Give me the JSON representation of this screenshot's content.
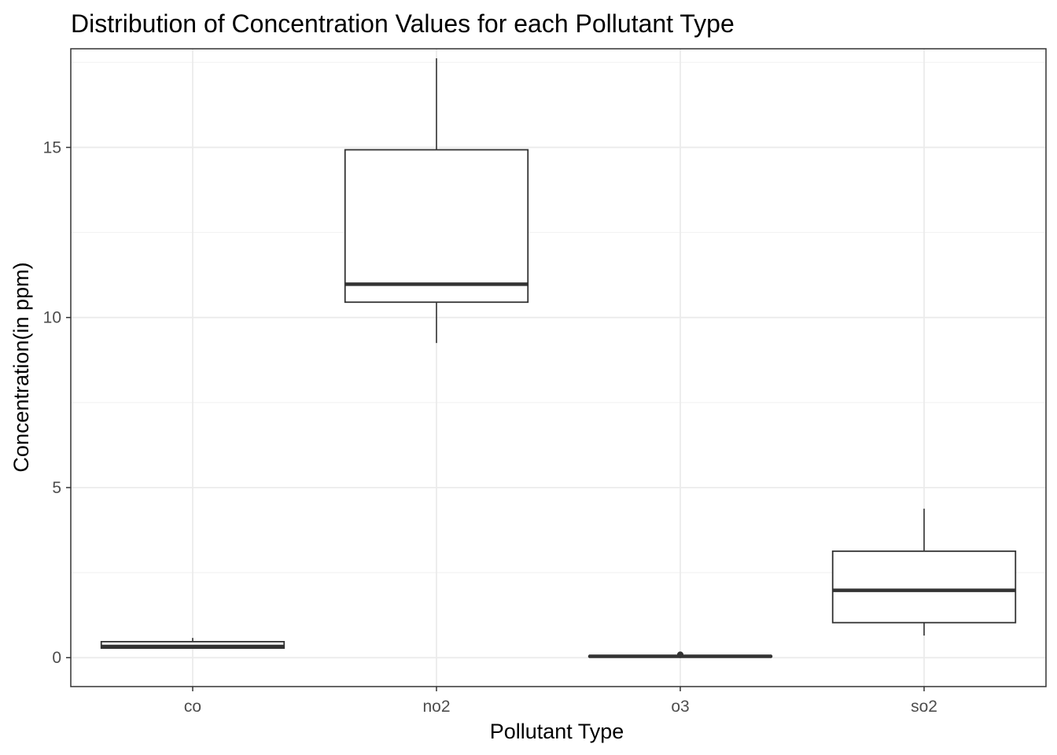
{
  "chart_data": {
    "type": "boxplot",
    "title": "Distribution of Concentration Values for each Pollutant Type",
    "xlabel": "Pollutant Type",
    "ylabel": "Concentration(in ppm)",
    "categories": [
      "co",
      "no2",
      "o3",
      "so2"
    ],
    "ylim": [
      -0.85,
      17.9
    ],
    "yticks": [
      0,
      5,
      10,
      15
    ],
    "grid": true,
    "legend": "none",
    "boxes": [
      {
        "category": "co",
        "whisker_low": 0.28,
        "q1": 0.28,
        "median": 0.33,
        "q3": 0.47,
        "whisker_high": 0.58,
        "outliers": []
      },
      {
        "category": "no2",
        "whisker_low": 9.25,
        "q1": 10.45,
        "median": 10.98,
        "q3": 14.93,
        "whisker_high": 17.62,
        "outliers": []
      },
      {
        "category": "o3",
        "whisker_low": 0.02,
        "q1": 0.03,
        "median": 0.04,
        "q3": 0.05,
        "whisker_high": 0.06,
        "outliers": [
          0.08,
          0.09
        ]
      },
      {
        "category": "so2",
        "whisker_low": 0.65,
        "q1": 1.03,
        "median": 1.98,
        "q3": 3.13,
        "whisker_high": 4.38,
        "outliers": []
      }
    ],
    "colors": {
      "box_stroke": "#333333",
      "box_fill": "#ffffff",
      "grid_major": "#ebebeb",
      "grid_minor": "#f3f3f3",
      "panel_border": "#333333",
      "tick_label": "#4d4d4d",
      "text": "#000000"
    }
  }
}
